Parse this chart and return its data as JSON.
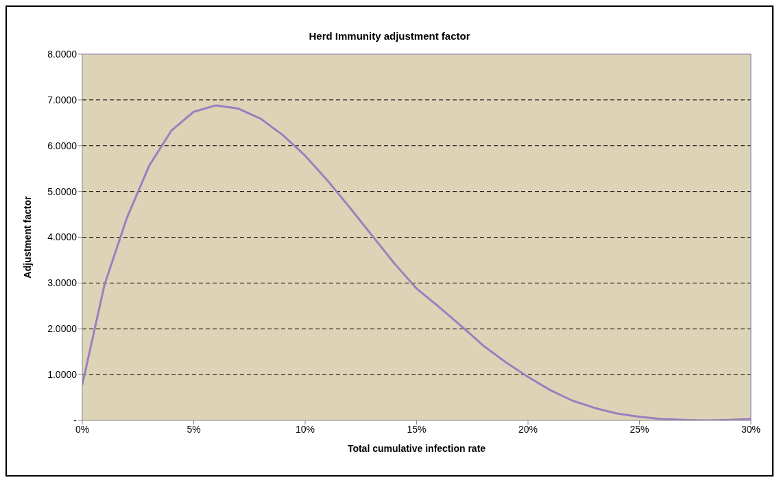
{
  "chart_data": {
    "type": "line",
    "title": "Herd Immunity adjustment factor",
    "xlabel": "Total cumulative infection rate",
    "ylabel": "Adjustment factor",
    "x": [
      0,
      1,
      2,
      3,
      4,
      5,
      6,
      7,
      8,
      9,
      10,
      11,
      12,
      13,
      14,
      15,
      16,
      17,
      18,
      19,
      20,
      21,
      22,
      23,
      24,
      25,
      26,
      27,
      28,
      29,
      30
    ],
    "series": [
      {
        "color": "#9b7fbf",
        "values": [
          0.78,
          2.97,
          4.42,
          5.56,
          6.33,
          6.74,
          6.88,
          6.81,
          6.59,
          6.23,
          5.78,
          5.24,
          4.65,
          4.04,
          3.43,
          2.88,
          2.48,
          2.06,
          1.63,
          1.27,
          0.95,
          0.66,
          0.43,
          0.27,
          0.15,
          0.08,
          0.03,
          0.01,
          0.0,
          0.01,
          0.03
        ]
      }
    ],
    "xlim": [
      0,
      30
    ],
    "xticks": [
      {
        "value": 0,
        "label": "0%"
      },
      {
        "value": 5,
        "label": "5%"
      },
      {
        "value": 10,
        "label": "10%"
      },
      {
        "value": 15,
        "label": "15%"
      },
      {
        "value": 20,
        "label": "20%"
      },
      {
        "value": 25,
        "label": "25%"
      },
      {
        "value": 30,
        "label": "30%"
      }
    ],
    "ylim": [
      0,
      8
    ],
    "yticks": [
      {
        "value": 0,
        "label": "-"
      },
      {
        "value": 1,
        "label": "1.0000"
      },
      {
        "value": 2,
        "label": "2.0000"
      },
      {
        "value": 3,
        "label": "3.0000"
      },
      {
        "value": 4,
        "label": "4.0000"
      },
      {
        "value": 5,
        "label": "5.0000"
      },
      {
        "value": 6,
        "label": "6.0000"
      },
      {
        "value": 7,
        "label": "7.0000"
      },
      {
        "value": 8,
        "label": "8.0000"
      }
    ],
    "grid": "y",
    "legend": false,
    "marker": "none",
    "line_style": "solid"
  }
}
